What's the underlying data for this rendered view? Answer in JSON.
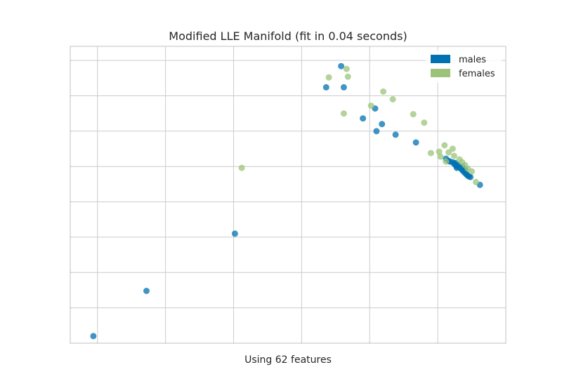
{
  "chart_data": {
    "type": "scatter",
    "title": "Modified LLE Manifold (fit in 0.04 seconds)",
    "xlabel": "Using 62 features",
    "ylabel": "",
    "grid": true,
    "legend_position": "top-right",
    "xlim": [
      -0.02,
      0.3
    ],
    "ylim": [
      -0.1,
      0.32
    ],
    "x_gridlines": [
      0.0,
      0.05,
      0.1,
      0.15,
      0.2,
      0.25,
      0.3
    ],
    "y_gridlines": [
      -0.1,
      -0.05,
      0.0,
      0.05,
      0.1,
      0.15,
      0.2,
      0.25,
      0.3
    ],
    "series": [
      {
        "name": "males",
        "color": "#0072b2",
        "points": [
          [
            0.179,
            0.292
          ],
          [
            0.168,
            0.262
          ],
          [
            0.181,
            0.262
          ],
          [
            0.195,
            0.218
          ],
          [
            0.204,
            0.232
          ],
          [
            0.209,
            0.21
          ],
          [
            0.205,
            0.2
          ],
          [
            0.219,
            0.195
          ],
          [
            0.234,
            0.184
          ],
          [
            0.256,
            0.161
          ],
          [
            0.258,
            0.158
          ],
          [
            0.259,
            0.157
          ],
          [
            0.261,
            0.156
          ],
          [
            0.262,
            0.154
          ],
          [
            0.263,
            0.152
          ],
          [
            0.264,
            0.15
          ],
          [
            0.265,
            0.152
          ],
          [
            0.266,
            0.149
          ],
          [
            0.267,
            0.147
          ],
          [
            0.268,
            0.145
          ],
          [
            0.269,
            0.143
          ],
          [
            0.27,
            0.141
          ],
          [
            0.271,
            0.139
          ],
          [
            0.272,
            0.137
          ],
          [
            0.273,
            0.136
          ],
          [
            0.274,
            0.135
          ],
          [
            0.264,
            0.148
          ],
          [
            0.268,
            0.15
          ],
          [
            0.27,
            0.146
          ],
          [
            0.263,
            0.155
          ],
          [
            0.281,
            0.124
          ],
          [
            0.101,
            0.055
          ],
          [
            0.036,
            -0.026
          ],
          [
            -0.003,
            -0.09
          ]
        ]
      },
      {
        "name": "females",
        "color": "#9bc47a",
        "points": [
          [
            0.183,
            0.288
          ],
          [
            0.17,
            0.276
          ],
          [
            0.184,
            0.277
          ],
          [
            0.21,
            0.256
          ],
          [
            0.217,
            0.245
          ],
          [
            0.201,
            0.236
          ],
          [
            0.181,
            0.225
          ],
          [
            0.232,
            0.224
          ],
          [
            0.24,
            0.212
          ],
          [
            0.255,
            0.18
          ],
          [
            0.251,
            0.171
          ],
          [
            0.258,
            0.17
          ],
          [
            0.261,
            0.175
          ],
          [
            0.245,
            0.169
          ],
          [
            0.252,
            0.164
          ],
          [
            0.262,
            0.165
          ],
          [
            0.266,
            0.16
          ],
          [
            0.268,
            0.156
          ],
          [
            0.27,
            0.152
          ],
          [
            0.256,
            0.157
          ],
          [
            0.272,
            0.147
          ],
          [
            0.275,
            0.143
          ],
          [
            0.278,
            0.128
          ],
          [
            0.106,
            0.148
          ]
        ]
      }
    ]
  }
}
